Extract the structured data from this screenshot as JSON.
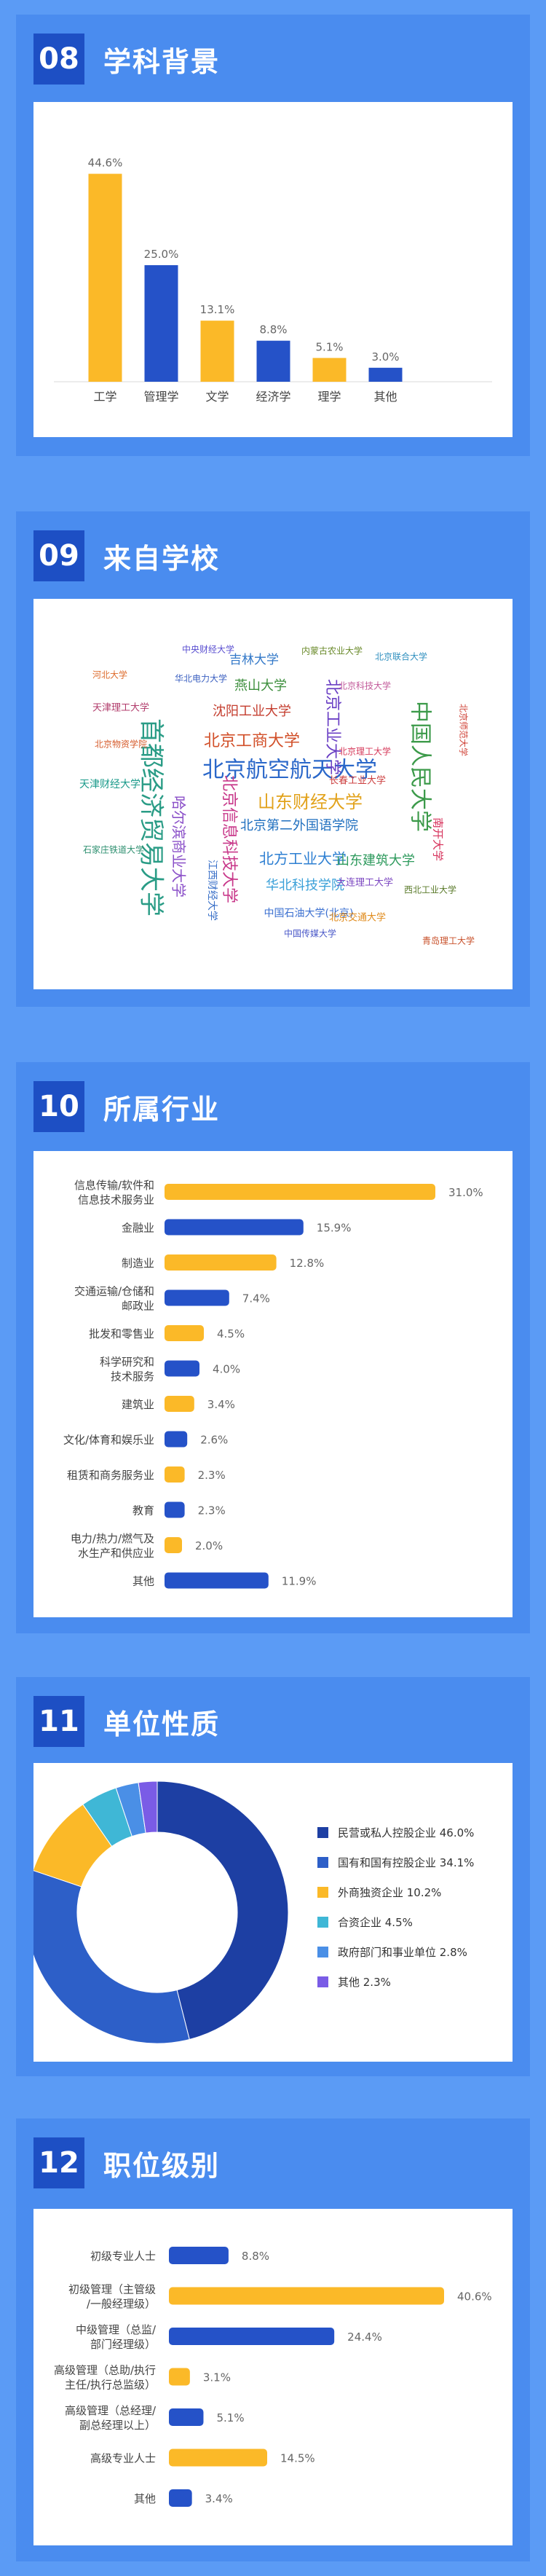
{
  "colors": {
    "yellow": "#fbb928",
    "blue": "#2552c8",
    "label": "#444444",
    "value": "#666666"
  },
  "sections": [
    {
      "num": "08",
      "title": "学科背景"
    },
    {
      "num": "09",
      "title": "来自学校"
    },
    {
      "num": "10",
      "title": "所属行业"
    },
    {
      "num": "11",
      "title": "单位性质"
    },
    {
      "num": "12",
      "title": "职位级别"
    }
  ],
  "major_chart": {
    "type": "bar",
    "categories": [
      "工学",
      "管理学",
      "文学",
      "经济学",
      "理学",
      "其他"
    ],
    "values": [
      44.6,
      25.0,
      13.1,
      8.8,
      5.1,
      3.0
    ],
    "labels": [
      "44.6%",
      "25.0%",
      "13.1%",
      "8.8%",
      "5.1%",
      "3.0%"
    ],
    "colors": [
      "yellow",
      "blue",
      "yellow",
      "blue",
      "yellow",
      "blue"
    ],
    "ylim": [
      0,
      50
    ]
  },
  "school_cloud": {
    "words": [
      {
        "t": "北京航空航天大学",
        "c": "#2a67c9"
      },
      {
        "t": "首都经济贸易大学",
        "c": "#2a9c86"
      },
      {
        "t": "中国人民大学",
        "c": "#3c9a4a"
      },
      {
        "t": "山东财经大学",
        "c": "#e2a21b"
      },
      {
        "t": "北京工商大学",
        "c": "#d2502a"
      },
      {
        "t": "北京信息科技大学",
        "c": "#c8388a"
      },
      {
        "t": "哈尔滨商业大学",
        "c": "#8a4fc8"
      },
      {
        "t": "北京工业大学",
        "c": "#6a3fc4"
      },
      {
        "t": "北京第二外国语学院",
        "c": "#1f6fbf"
      },
      {
        "t": "北方工业大学",
        "c": "#2d7fd2"
      },
      {
        "t": "华北科技学院",
        "c": "#3aa0d8"
      },
      {
        "t": "山东建筑大学",
        "c": "#2e9a5d"
      },
      {
        "t": "沈阳工业大学",
        "c": "#c43d2e"
      },
      {
        "t": "燕山大学",
        "c": "#3c8e3c"
      },
      {
        "t": "吉林大学",
        "c": "#3278c8"
      },
      {
        "t": "南开大学",
        "c": "#d6305a"
      },
      {
        "t": "天津财经大学",
        "c": "#1a9a8a"
      },
      {
        "t": "北京物资学院",
        "c": "#d65a2a"
      },
      {
        "t": "中国石油大学(北京)",
        "c": "#3a6fd0"
      },
      {
        "t": "大连理工大学",
        "c": "#7a45c0"
      },
      {
        "t": "天津理工大学",
        "c": "#b03a6a"
      },
      {
        "t": "北京交通大学",
        "c": "#e08a1a"
      },
      {
        "t": "长春工业大学",
        "c": "#cc3f3f"
      },
      {
        "t": "北京联合大学",
        "c": "#2f8fbf"
      },
      {
        "t": "西北工业大学",
        "c": "#5a7a2a"
      },
      {
        "t": "北京科技大学",
        "c": "#c25a9a"
      },
      {
        "t": "华北电力大学",
        "c": "#3a5fc0"
      },
      {
        "t": "河北大学",
        "c": "#dd6a2a"
      },
      {
        "t": "北京师范大学",
        "c": "#d0453a"
      },
      {
        "t": "中央财经大学",
        "c": "#5a4fd0"
      },
      {
        "t": "石家庄铁道大学",
        "c": "#2d8f6f"
      },
      {
        "t": "江西财经大学",
        "c": "#3a70c8"
      },
      {
        "t": "北京理工大学",
        "c": "#d6395a"
      },
      {
        "t": "内蒙古农业大学",
        "c": "#6a8a2a"
      },
      {
        "t": "青岛理工大学",
        "c": "#c8502a"
      },
      {
        "t": "中国传媒大学",
        "c": "#4a58c8"
      }
    ]
  },
  "industry_chart": {
    "type": "bar",
    "orientation": "horizontal",
    "categories": [
      [
        "信息传输/软件和",
        "信息技术服务业"
      ],
      [
        "金融业"
      ],
      [
        "制造业"
      ],
      [
        "交通运输/仓储和",
        "邮政业"
      ],
      [
        "批发和零售业"
      ],
      [
        "科学研究和",
        "技术服务"
      ],
      [
        "建筑业"
      ],
      [
        "文化/体育和娱乐业"
      ],
      [
        "租赁和商务服务业"
      ],
      [
        "教育"
      ],
      [
        "电力/热力/燃气及",
        "水生产和供应业"
      ],
      [
        "其他"
      ]
    ],
    "values": [
      31.0,
      15.9,
      12.8,
      7.4,
      4.5,
      4.0,
      3.4,
      2.6,
      2.3,
      2.3,
      2.0,
      11.9
    ],
    "labels": [
      "31.0%",
      "15.9%",
      "12.8%",
      "7.4%",
      "4.5%",
      "4.0%",
      "3.4%",
      "2.6%",
      "2.3%",
      "2.3%",
      "2.0%",
      "11.9%"
    ],
    "colors": [
      "yellow",
      "blue",
      "yellow",
      "blue",
      "yellow",
      "blue",
      "yellow",
      "blue",
      "yellow",
      "blue",
      "yellow",
      "blue"
    ],
    "xlim": [
      0,
      31
    ]
  },
  "nature_chart": {
    "type": "pie",
    "style": "donut",
    "legend": "right",
    "slices": [
      {
        "label": "民营或私人控股企业 46.0%",
        "value": 46.0,
        "color": "#1d3fa3"
      },
      {
        "label": "国有和国有控股企业 34.1%",
        "value": 34.1,
        "color": "#2d5fc8"
      },
      {
        "label": "外商独资企业 10.2%",
        "value": 10.2,
        "color": "#fbb928"
      },
      {
        "label": "合资企业 4.5%",
        "value": 4.5,
        "color": "#3fb7d6"
      },
      {
        "label": "政府部门和事业单位 2.8%",
        "value": 2.8,
        "color": "#4a8fe6"
      },
      {
        "label": "其他 2.3%",
        "value": 2.3,
        "color": "#7a5ce6"
      }
    ]
  },
  "level_chart": {
    "type": "bar",
    "orientation": "horizontal",
    "categories": [
      [
        "初级专业人士"
      ],
      [
        "初级管理（主管级",
        "/一般经理级）"
      ],
      [
        "中级管理（总监/",
        "部门经理级）"
      ],
      [
        "高级管理（总助/执行",
        "主任/执行总监级）"
      ],
      [
        "高级管理（总经理/",
        "副总经理以上）"
      ],
      [
        "高级专业人士"
      ],
      [
        "其他"
      ]
    ],
    "values": [
      8.8,
      40.6,
      24.4,
      3.1,
      5.1,
      14.5,
      3.4
    ],
    "labels": [
      "8.8%",
      "40.6%",
      "24.4%",
      "3.1%",
      "5.1%",
      "14.5%",
      "3.4%"
    ],
    "colors": [
      "blue",
      "yellow",
      "blue",
      "yellow",
      "blue",
      "yellow",
      "blue"
    ],
    "xlim": [
      0,
      40.6
    ]
  }
}
